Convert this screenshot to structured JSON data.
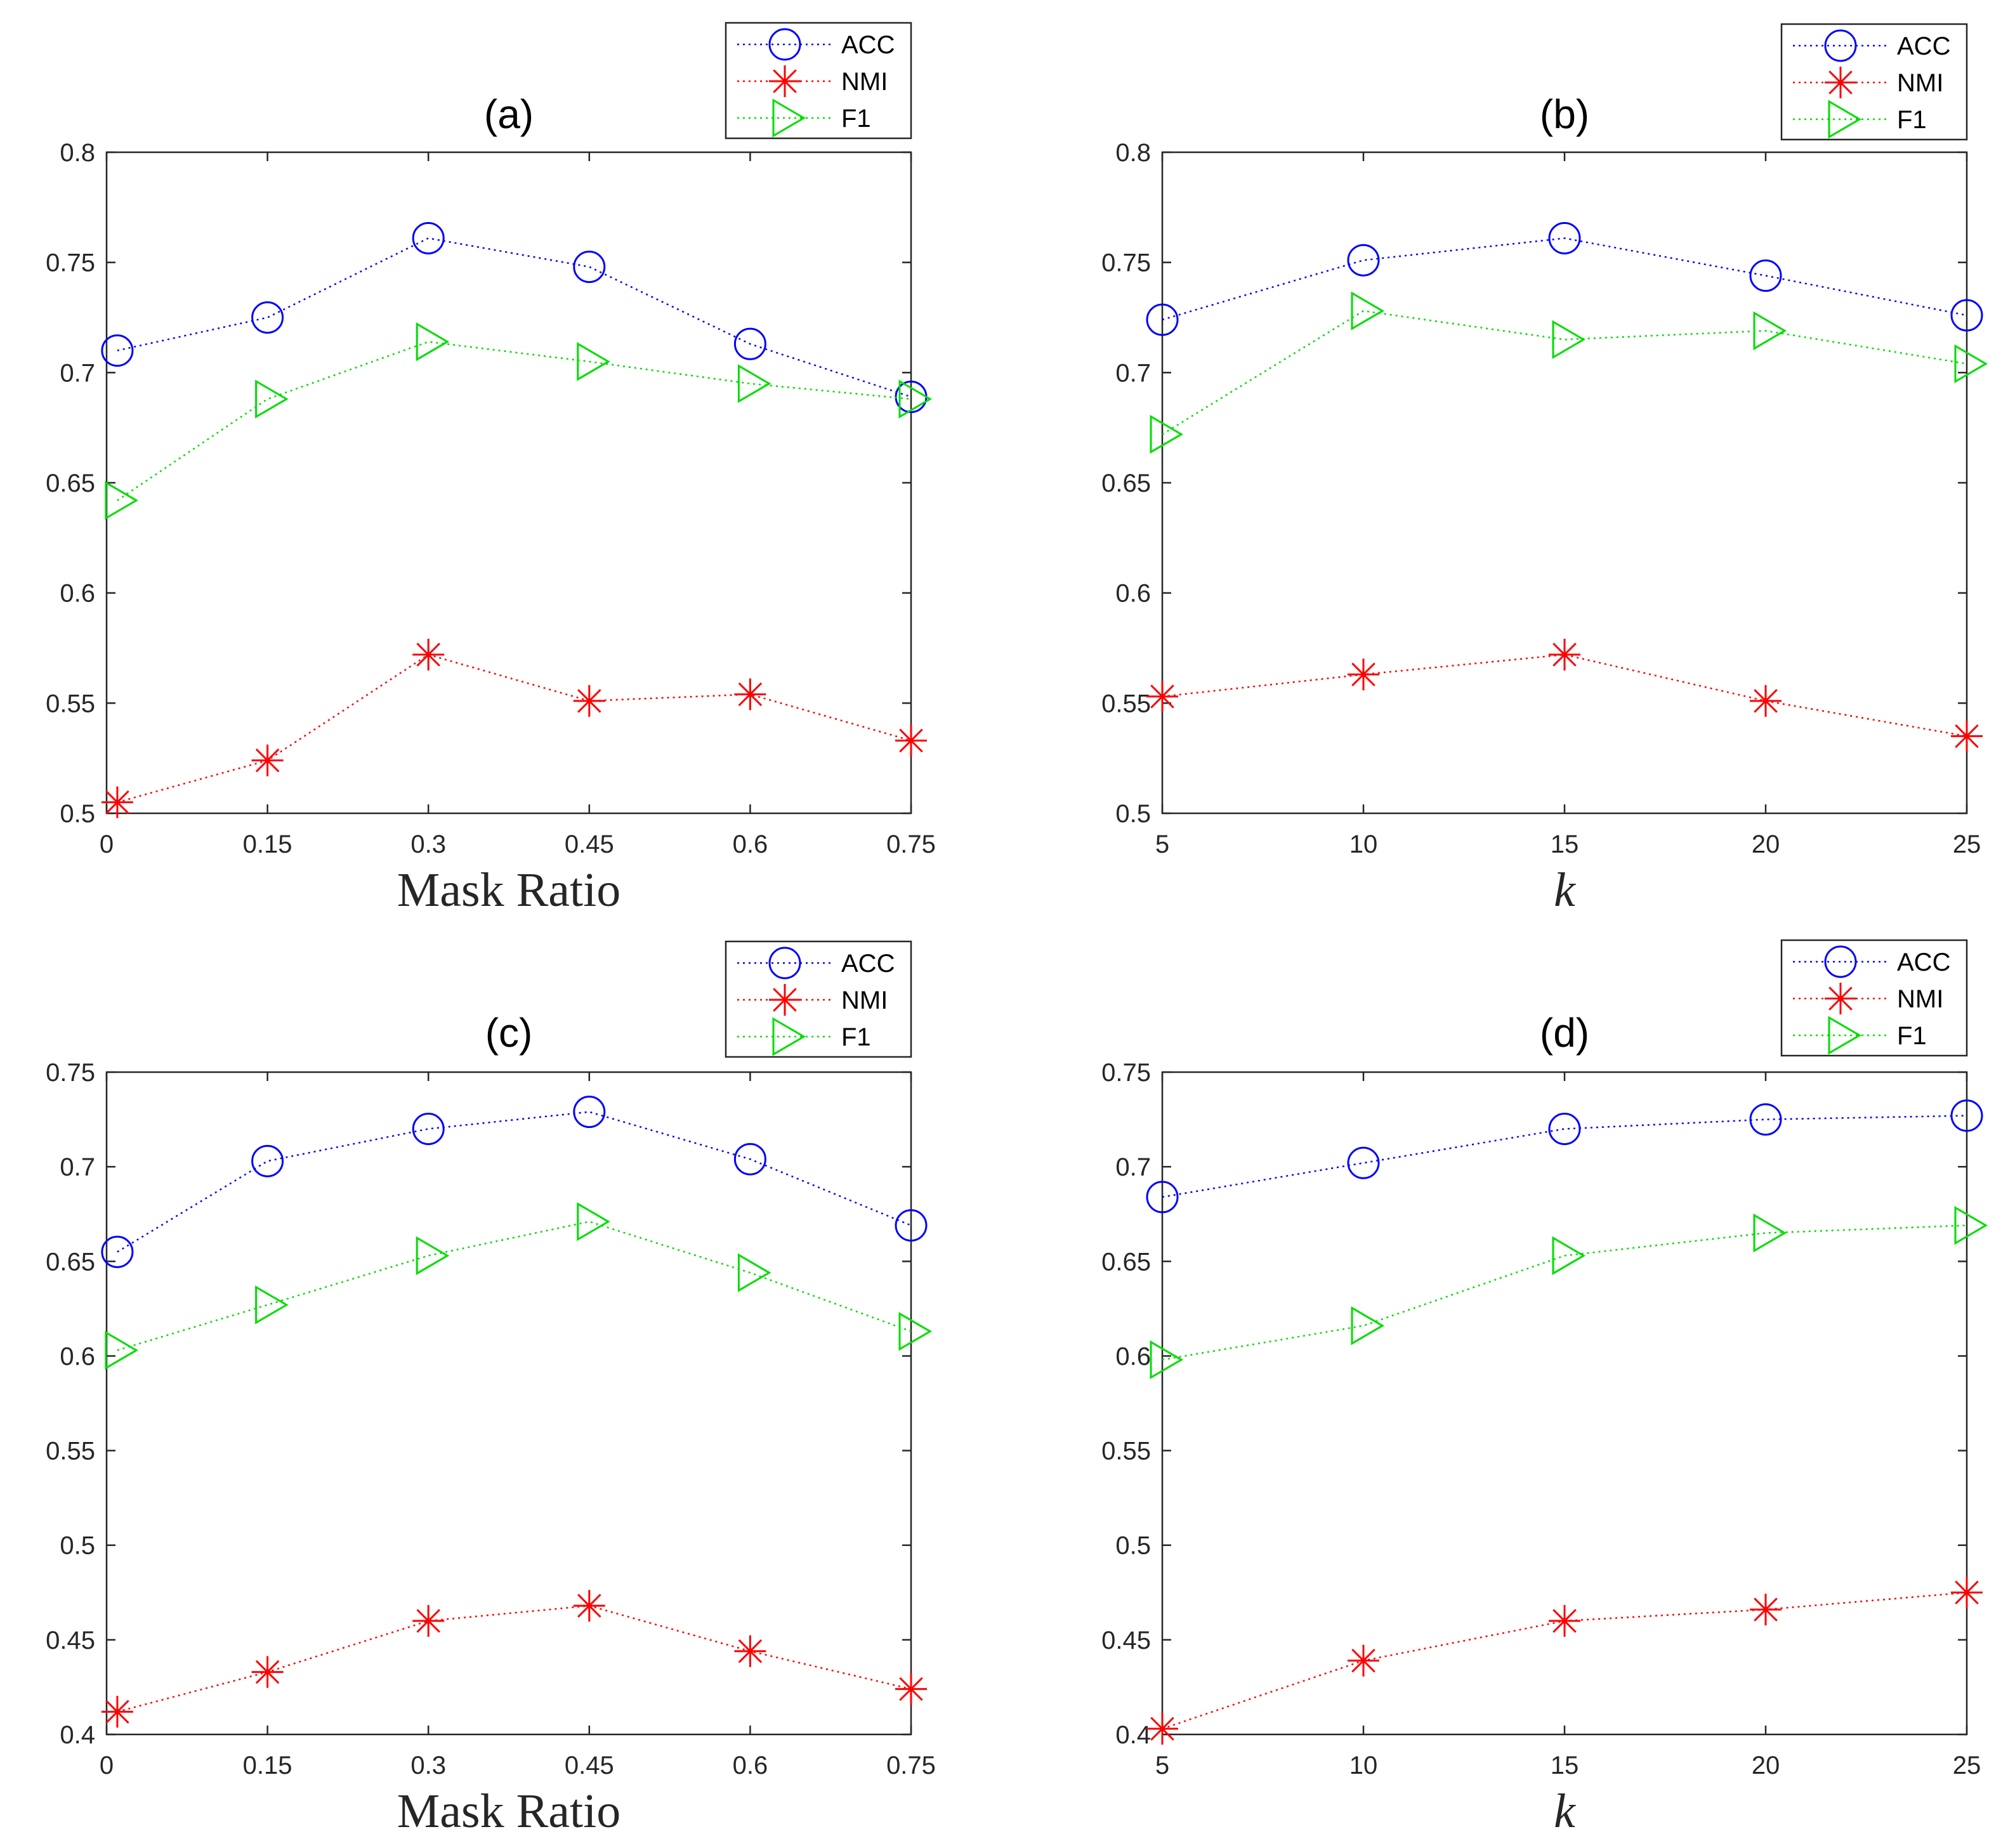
{
  "chart_data": [
    {
      "id": "a",
      "type": "line",
      "title": "(a)",
      "xlabel": "Mask Ratio",
      "xlabel_style": "serif",
      "ylabel": "",
      "x": [
        0.01,
        0.15,
        0.3,
        0.45,
        0.6,
        0.75
      ],
      "xlim": [
        0,
        0.75
      ],
      "xticks": [
        0,
        0.15,
        0.3,
        0.45,
        0.6,
        0.75
      ],
      "xtick_labels": [
        "0",
        "0.15",
        "0.3",
        "0.45",
        "0.6",
        "0.75"
      ],
      "ylim": [
        0.5,
        0.8
      ],
      "yticks": [
        0.5,
        0.55,
        0.6,
        0.65,
        0.7,
        0.75,
        0.8
      ],
      "ytick_labels": [
        "0.5",
        "0.55",
        "0.6",
        "0.65",
        "0.7",
        "0.75",
        "0.8"
      ],
      "grid": false,
      "legend_position": "top-right-outside",
      "series": [
        {
          "name": "ACC",
          "marker": "circle",
          "color": "#0000FF",
          "values": [
            0.71,
            0.725,
            0.761,
            0.748,
            0.713,
            0.689
          ]
        },
        {
          "name": "NMI",
          "marker": "asterisk",
          "color": "#FF0000",
          "values": [
            0.505,
            0.524,
            0.572,
            0.551,
            0.554,
            0.533
          ]
        },
        {
          "name": "F1",
          "marker": "triangle-right",
          "color": "#00DD00",
          "values": [
            0.642,
            0.688,
            0.714,
            0.705,
            0.695,
            0.688
          ]
        }
      ]
    },
    {
      "id": "b",
      "type": "line",
      "title": "(b)",
      "xlabel": "k",
      "xlabel_style": "italic",
      "ylabel": "",
      "x": [
        5,
        10,
        15,
        20,
        25
      ],
      "xlim": [
        5,
        25
      ],
      "xticks": [
        5,
        10,
        15,
        20,
        25
      ],
      "xtick_labels": [
        "5",
        "10",
        "15",
        "20",
        "25"
      ],
      "ylim": [
        0.5,
        0.8
      ],
      "yticks": [
        0.5,
        0.55,
        0.6,
        0.65,
        0.7,
        0.75,
        0.8
      ],
      "ytick_labels": [
        "0.5",
        "0.55",
        "0.6",
        "0.65",
        "0.7",
        "0.75",
        "0.8"
      ],
      "grid": false,
      "legend_position": "top-right-outside",
      "series": [
        {
          "name": "ACC",
          "marker": "circle",
          "color": "#0000FF",
          "values": [
            0.724,
            0.751,
            0.761,
            0.744,
            0.726
          ]
        },
        {
          "name": "NMI",
          "marker": "asterisk",
          "color": "#FF0000",
          "values": [
            0.553,
            0.563,
            0.572,
            0.551,
            0.535
          ]
        },
        {
          "name": "F1",
          "marker": "triangle-right",
          "color": "#00DD00",
          "values": [
            0.672,
            0.728,
            0.715,
            0.719,
            0.704
          ]
        }
      ]
    },
    {
      "id": "c",
      "type": "line",
      "title": "(c)",
      "xlabel": "Mask Ratio",
      "xlabel_style": "serif",
      "ylabel": "",
      "x": [
        0.01,
        0.15,
        0.3,
        0.45,
        0.6,
        0.75
      ],
      "xlim": [
        0,
        0.75
      ],
      "xticks": [
        0,
        0.15,
        0.3,
        0.45,
        0.6,
        0.75
      ],
      "xtick_labels": [
        "0",
        "0.15",
        "0.3",
        "0.45",
        "0.6",
        "0.75"
      ],
      "ylim": [
        0.4,
        0.75
      ],
      "yticks": [
        0.4,
        0.45,
        0.5,
        0.55,
        0.6,
        0.65,
        0.7,
        0.75
      ],
      "ytick_labels": [
        "0.4",
        "0.45",
        "0.5",
        "0.55",
        "0.6",
        "0.65",
        "0.7",
        "0.75"
      ],
      "grid": false,
      "legend_position": "top-right-outside",
      "series": [
        {
          "name": "ACC",
          "marker": "circle",
          "color": "#0000FF",
          "values": [
            0.655,
            0.703,
            0.72,
            0.729,
            0.704,
            0.669
          ]
        },
        {
          "name": "NMI",
          "marker": "asterisk",
          "color": "#FF0000",
          "values": [
            0.412,
            0.433,
            0.46,
            0.468,
            0.444,
            0.424
          ]
        },
        {
          "name": "F1",
          "marker": "triangle-right",
          "color": "#00DD00",
          "values": [
            0.603,
            0.627,
            0.653,
            0.671,
            0.644,
            0.613
          ]
        }
      ]
    },
    {
      "id": "d",
      "type": "line",
      "title": "(d)",
      "xlabel": "k",
      "xlabel_style": "italic",
      "ylabel": "",
      "x": [
        5,
        10,
        15,
        20,
        25
      ],
      "xlim": [
        5,
        25
      ],
      "xticks": [
        5,
        10,
        15,
        20,
        25
      ],
      "xtick_labels": [
        "5",
        "10",
        "15",
        "20",
        "25"
      ],
      "ylim": [
        0.4,
        0.75
      ],
      "yticks": [
        0.4,
        0.45,
        0.5,
        0.55,
        0.6,
        0.65,
        0.7,
        0.75
      ],
      "ytick_labels": [
        "0.4",
        "0.45",
        "0.5",
        "0.55",
        "0.6",
        "0.65",
        "0.7",
        "0.75"
      ],
      "grid": false,
      "legend_position": "top-right-outside",
      "series": [
        {
          "name": "ACC",
          "marker": "circle",
          "color": "#0000FF",
          "values": [
            0.684,
            0.702,
            0.72,
            0.725,
            0.727
          ]
        },
        {
          "name": "NMI",
          "marker": "asterisk",
          "color": "#FF0000",
          "values": [
            0.403,
            0.439,
            0.46,
            0.466,
            0.475
          ]
        },
        {
          "name": "F1",
          "marker": "triangle-right",
          "color": "#00DD00",
          "values": [
            0.598,
            0.616,
            0.653,
            0.665,
            0.669
          ]
        }
      ]
    }
  ]
}
